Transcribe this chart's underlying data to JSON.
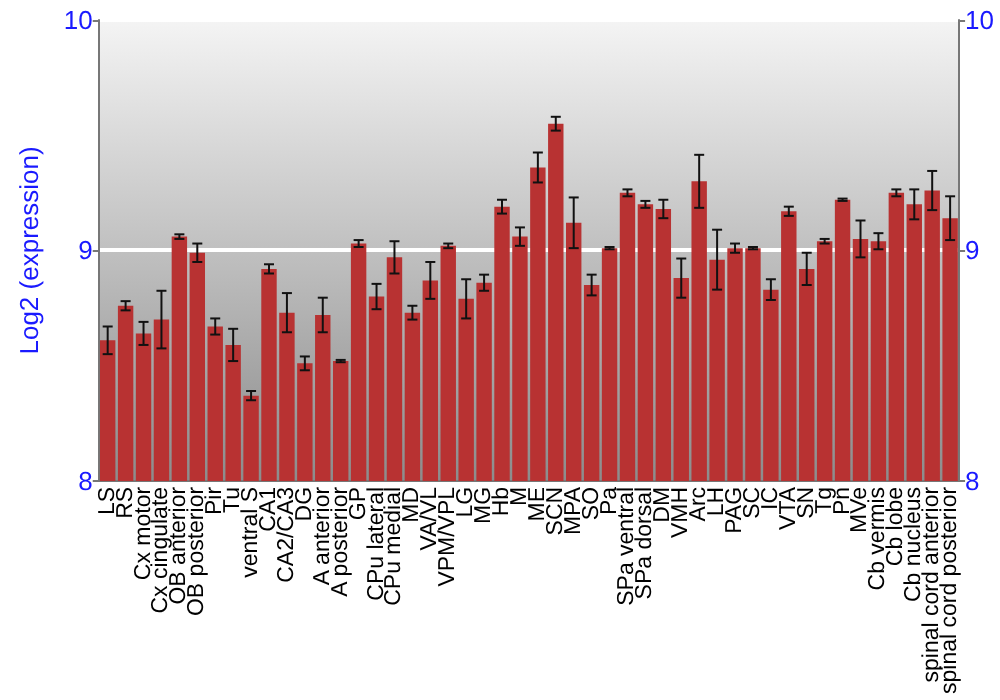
{
  "chart_data": {
    "type": "bar",
    "ylabel": "Log2 (expression)",
    "categories": [
      "LS",
      "RS",
      "Cx motor",
      "Cx cingulate",
      "OB anterior",
      "OB posterior",
      "Pir",
      "Tu",
      "ventral S",
      "CA1",
      "CA2/CA3",
      "DG",
      "A anterior",
      "A posterior",
      "GP",
      "CPu lateral",
      "CPu medial",
      "MD",
      "VA/VL",
      "VPM/VPL",
      "LG",
      "MG",
      "Hb",
      "M",
      "ME",
      "SCN",
      "MPA",
      "SO",
      "Pa",
      "SPa ventral",
      "SPa dorsal",
      "DM",
      "VMH",
      "Arc",
      "LH",
      "PAG",
      "SC",
      "IC",
      "VTA",
      "SN",
      "Tg",
      "Pn",
      "MVe",
      "Cb vermis",
      "Cb lobe",
      "Cb nucleus",
      "spinal cord anterior",
      "spinal cord posterior"
    ],
    "series": [
      {
        "color": "#b83232",
        "values": [
          8.61,
          8.76,
          8.64,
          8.7,
          9.06,
          8.99,
          8.67,
          8.59,
          8.37,
          8.92,
          8.73,
          8.51,
          8.72,
          8.52,
          9.03,
          8.8,
          8.97,
          8.73,
          8.87,
          9.02,
          8.79,
          8.86,
          9.19,
          9.06,
          9.36,
          9.55,
          9.12,
          8.85,
          9.01,
          9.25,
          9.2,
          9.18,
          8.88,
          9.3,
          8.96,
          9.01,
          9.01,
          8.83,
          9.17,
          8.92,
          9.04,
          9.22,
          9.05,
          9.04,
          9.25,
          9.2,
          9.26,
          9.14
        ],
        "errors": [
          0.06,
          0.02,
          0.05,
          0.125,
          0.01,
          0.04,
          0.035,
          0.07,
          0.02,
          0.02,
          0.085,
          0.03,
          0.075,
          0.005,
          0.015,
          0.055,
          0.07,
          0.03,
          0.08,
          0.01,
          0.085,
          0.035,
          0.03,
          0.04,
          0.065,
          0.03,
          0.11,
          0.045,
          0.005,
          0.015,
          0.015,
          0.04,
          0.085,
          0.115,
          0.13,
          0.02,
          0.005,
          0.045,
          0.02,
          0.07,
          0.01,
          0.005,
          0.08,
          0.035,
          0.015,
          0.065,
          0.085,
          0.095
        ]
      }
    ],
    "ylim": [
      8,
      10
    ],
    "yticks": [
      8,
      9,
      10
    ],
    "y2lim": [
      8,
      10
    ],
    "y2ticks": [
      8,
      9,
      10
    ],
    "grid": "y"
  }
}
